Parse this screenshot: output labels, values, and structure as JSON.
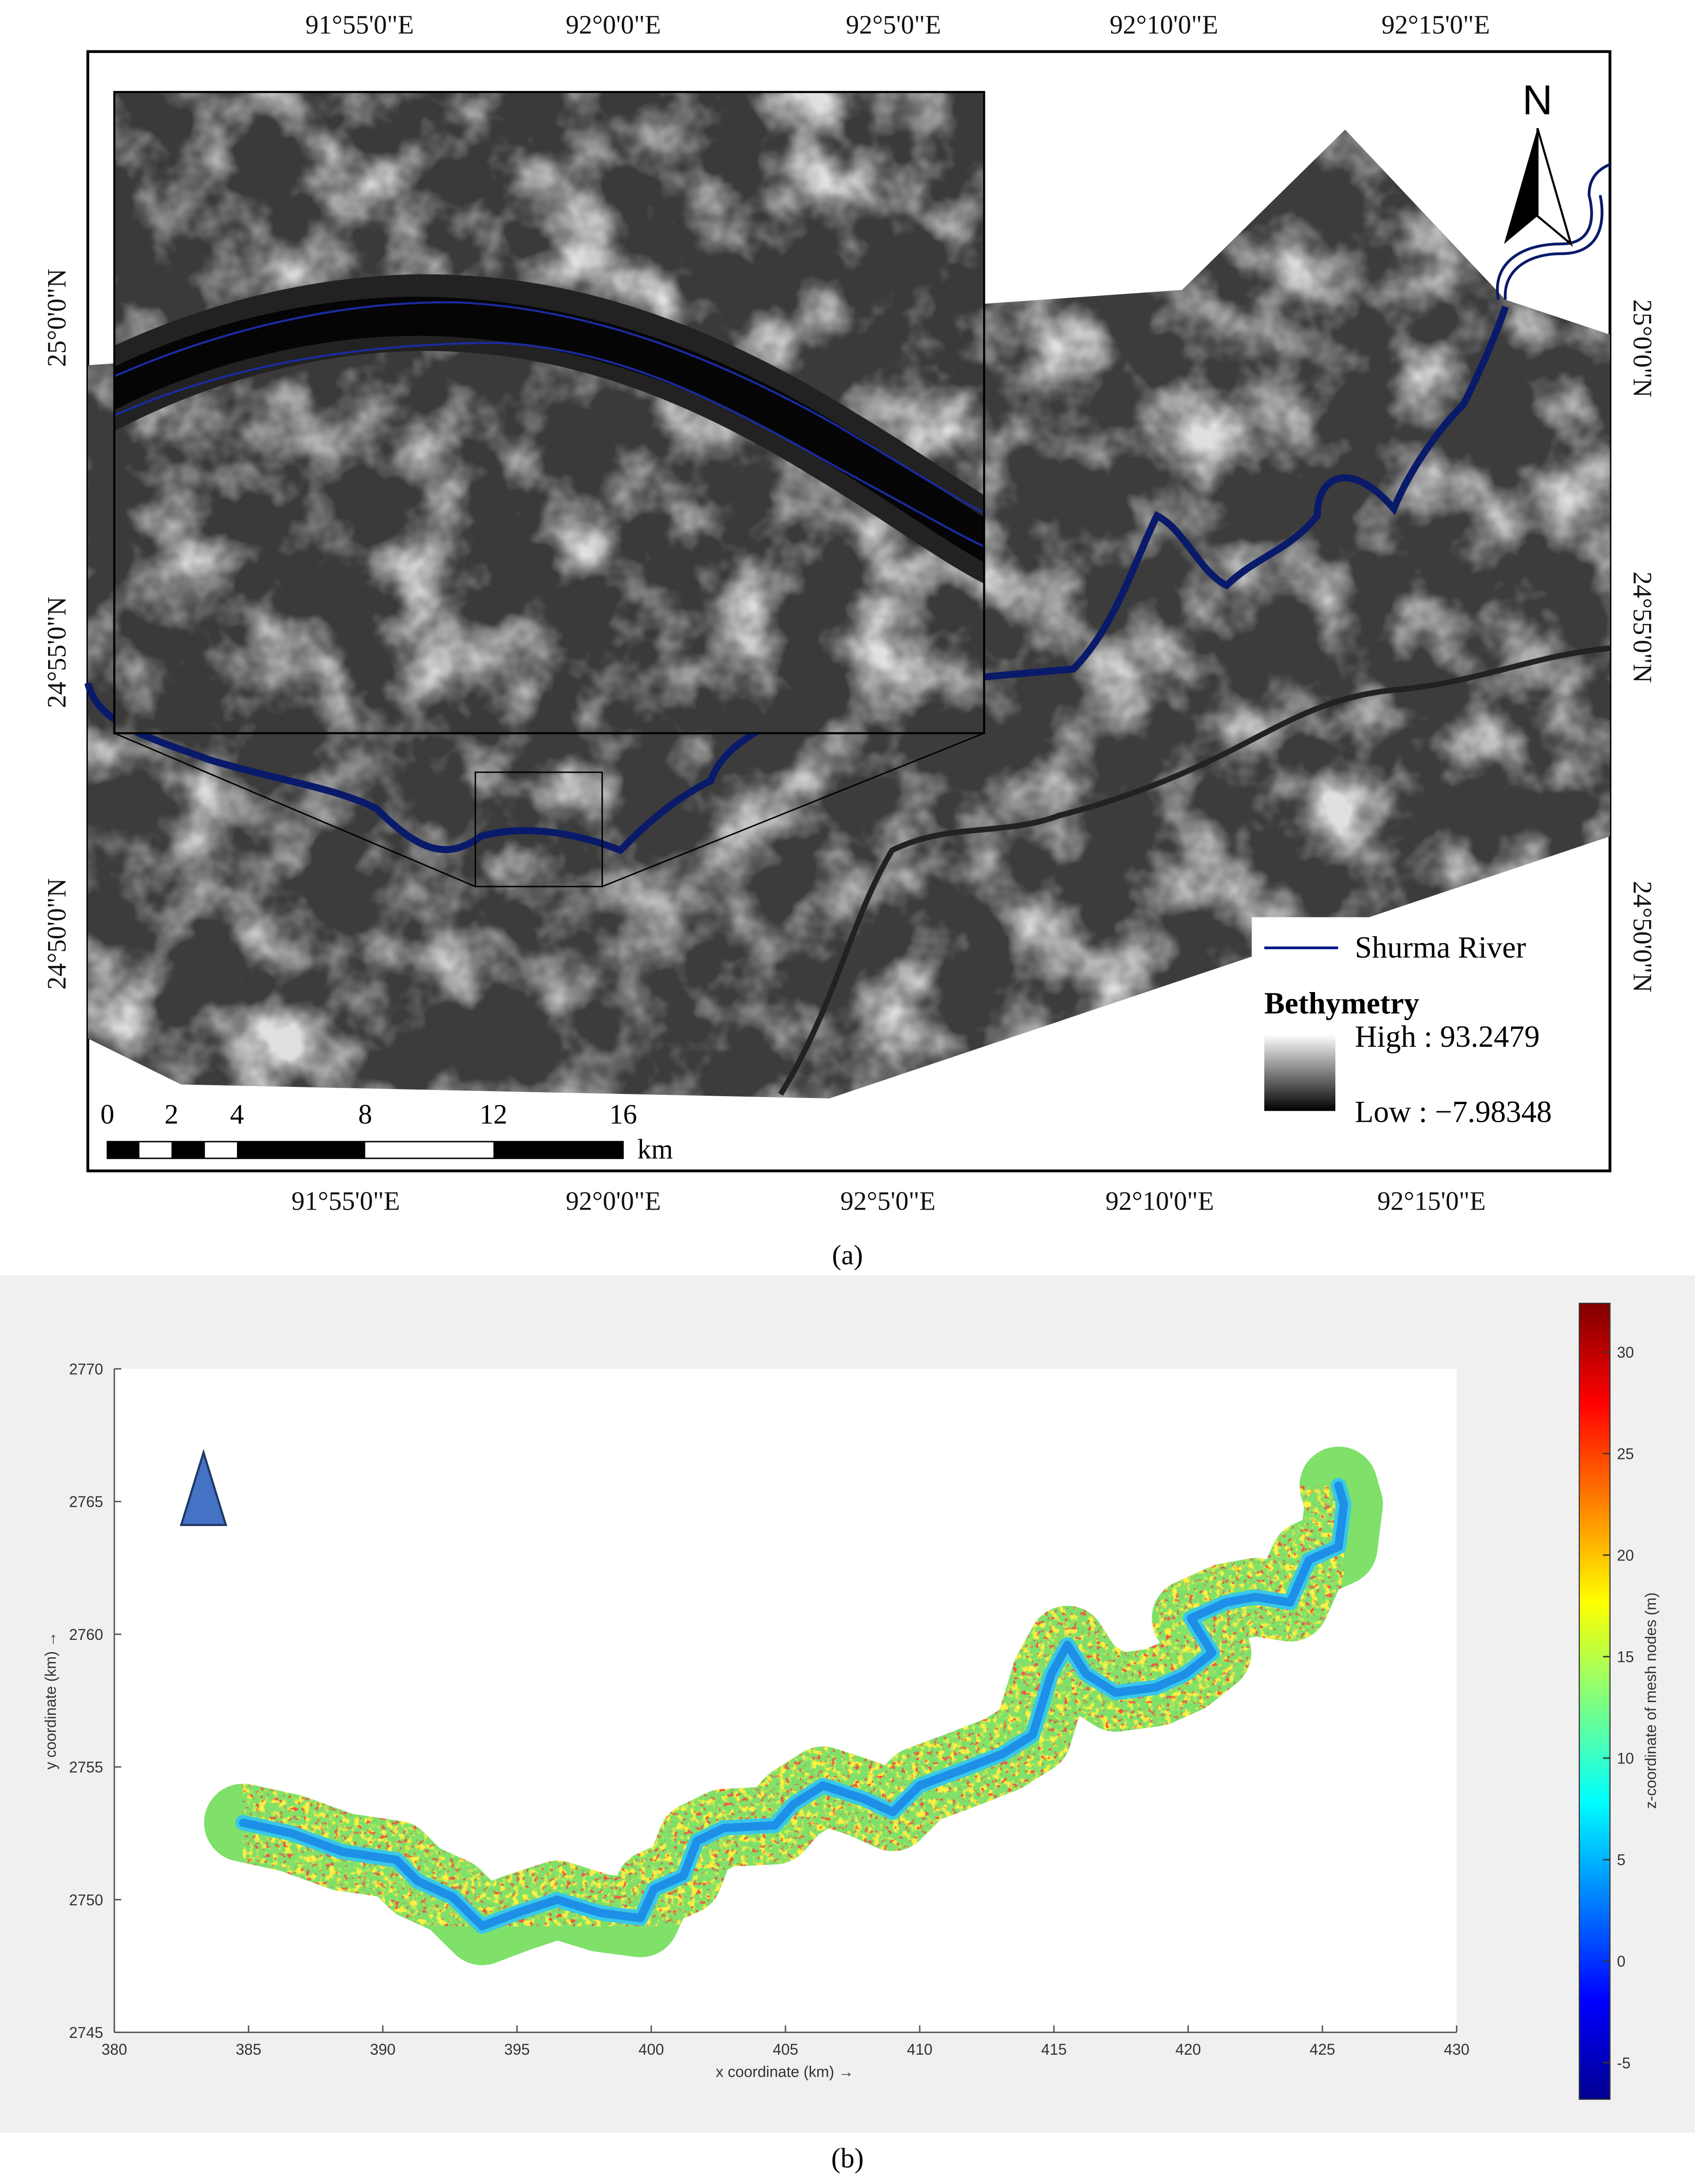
{
  "map": {
    "lon_labels": [
      "91°55'0\"E",
      "92°0'0\"E",
      "92°5'0\"E",
      "92°10'0\"E",
      "92°15'0\"E"
    ],
    "lat_labels": [
      "25°0'0\"N",
      "24°55'0\"N",
      "24°50'0\"N"
    ],
    "north": "N",
    "legend": {
      "river": "Shurma River",
      "title": "Bethymetry",
      "high": "High : 93.2479",
      "low": "Low : −7.98348"
    },
    "scale_bar": {
      "labels": [
        "0",
        "2",
        "4",
        "8",
        "12",
        "16"
      ],
      "unit": "km"
    },
    "caption": "(a)"
  },
  "chart_data": {
    "type": "line",
    "xlabel": "x coordinate (km) →",
    "ylabel": "y coordinate (km) →",
    "xlim": [
      380,
      430
    ],
    "xticks": [
      380,
      385,
      390,
      395,
      400,
      405,
      410,
      415,
      420,
      425,
      430
    ],
    "ylim": [
      2745,
      2770
    ],
    "yticks": [
      2745,
      2750,
      2755,
      2760,
      2765,
      2770
    ],
    "x": [
      384.8,
      386.6,
      388.5,
      390.5,
      391.3,
      392.6,
      393.7,
      395.0,
      396.5,
      398.1,
      399.6,
      400.1,
      401.2,
      401.7,
      402.7,
      404.6,
      405.3,
      406.4,
      407.9,
      409.0,
      410.0,
      411.6,
      413.1,
      414.2,
      414.9,
      415.5,
      416.2,
      417.3,
      418.8,
      419.9,
      420.9,
      420.1,
      421.4,
      422.5,
      423.8,
      424.5,
      425.6,
      425.8,
      425.6
    ],
    "values": [
      2752.9,
      2752.5,
      2751.8,
      2751.5,
      2750.7,
      2750.1,
      2749.0,
      2749.5,
      2750.0,
      2749.5,
      2749.3,
      2750.4,
      2750.9,
      2752.2,
      2752.7,
      2752.8,
      2753.6,
      2754.3,
      2753.8,
      2753.3,
      2754.3,
      2754.9,
      2755.5,
      2756.2,
      2758.5,
      2759.6,
      2758.5,
      2757.8,
      2758.0,
      2758.5,
      2759.3,
      2760.6,
      2761.2,
      2761.4,
      2761.2,
      2762.8,
      2763.3,
      2764.9,
      2765.6
    ],
    "color": "#1e8fe6",
    "colorbar": {
      "label": "z-coordinate of mesh nodes (m)",
      "lim": [
        -6.8,
        32.4
      ],
      "ticks": [
        -5,
        0,
        5,
        10,
        15,
        20,
        25,
        30
      ]
    },
    "caption": "(b)"
  }
}
